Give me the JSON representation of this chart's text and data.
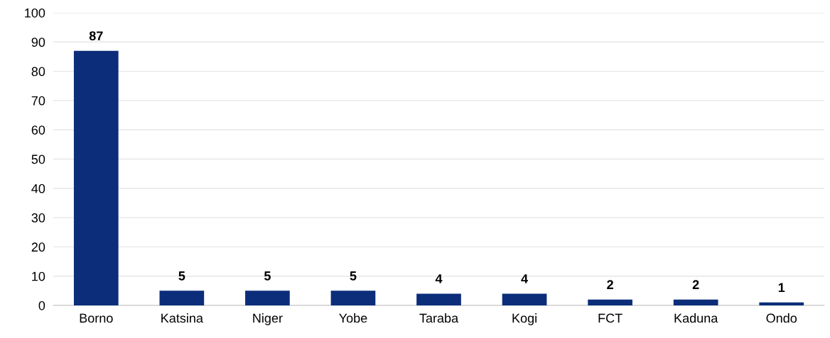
{
  "chart_data": {
    "type": "bar",
    "categories": [
      "Borno",
      "Katsina",
      "Niger",
      "Yobe",
      "Taraba",
      "Kogi",
      "FCT",
      "Kaduna",
      "Ondo"
    ],
    "values": [
      87,
      5,
      5,
      5,
      4,
      4,
      2,
      2,
      1
    ],
    "color": "#0b2d7a",
    "ylim": [
      0,
      100
    ],
    "yticks": [
      0,
      10,
      20,
      30,
      40,
      50,
      60,
      70,
      80,
      90,
      100
    ],
    "grid": "y",
    "data_labels": true
  }
}
